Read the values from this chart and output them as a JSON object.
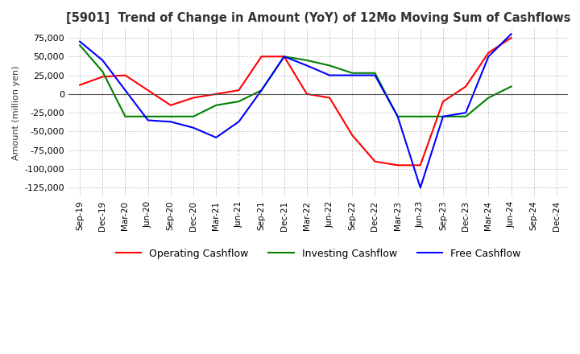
{
  "title": "[5901]  Trend of Change in Amount (YoY) of 12Mo Moving Sum of Cashflows",
  "ylabel": "Amount (million yen)",
  "x_labels": [
    "Sep-19",
    "Dec-19",
    "Mar-20",
    "Jun-20",
    "Sep-20",
    "Dec-20",
    "Mar-21",
    "Jun-21",
    "Sep-21",
    "Dec-21",
    "Mar-22",
    "Jun-22",
    "Sep-22",
    "Dec-22",
    "Mar-23",
    "Jun-23",
    "Sep-23",
    "Dec-23",
    "Mar-24",
    "Jun-24",
    "Sep-24",
    "Dec-24"
  ],
  "operating": [
    12000,
    23000,
    25000,
    5000,
    -15000,
    -5000,
    0,
    5000,
    50000,
    50000,
    0,
    -5000,
    -55000,
    -90000,
    -95000,
    -95000,
    -10000,
    10000,
    55000,
    75000,
    null,
    null
  ],
  "investing": [
    65000,
    30000,
    -30000,
    -30000,
    -30000,
    -30000,
    -15000,
    -10000,
    5000,
    50000,
    45000,
    38000,
    28000,
    28000,
    -30000,
    -30000,
    -30000,
    -30000,
    -5000,
    10000,
    null,
    null
  ],
  "free": [
    70000,
    45000,
    5000,
    -35000,
    -37000,
    -45000,
    -58000,
    -37000,
    5000,
    50000,
    38000,
    25000,
    25000,
    25000,
    -30000,
    -125000,
    -30000,
    -25000,
    50000,
    80000,
    null,
    null
  ],
  "ylim": [
    -137500,
    87500
  ],
  "yticks": [
    -125000,
    -100000,
    -75000,
    -50000,
    -25000,
    0,
    25000,
    50000,
    75000
  ],
  "operating_color": "#FF0000",
  "investing_color": "#008000",
  "free_color": "#0000FF",
  "background_color": "#FFFFFF",
  "grid_color": "#AAAAAA",
  "grid_style": ":"
}
